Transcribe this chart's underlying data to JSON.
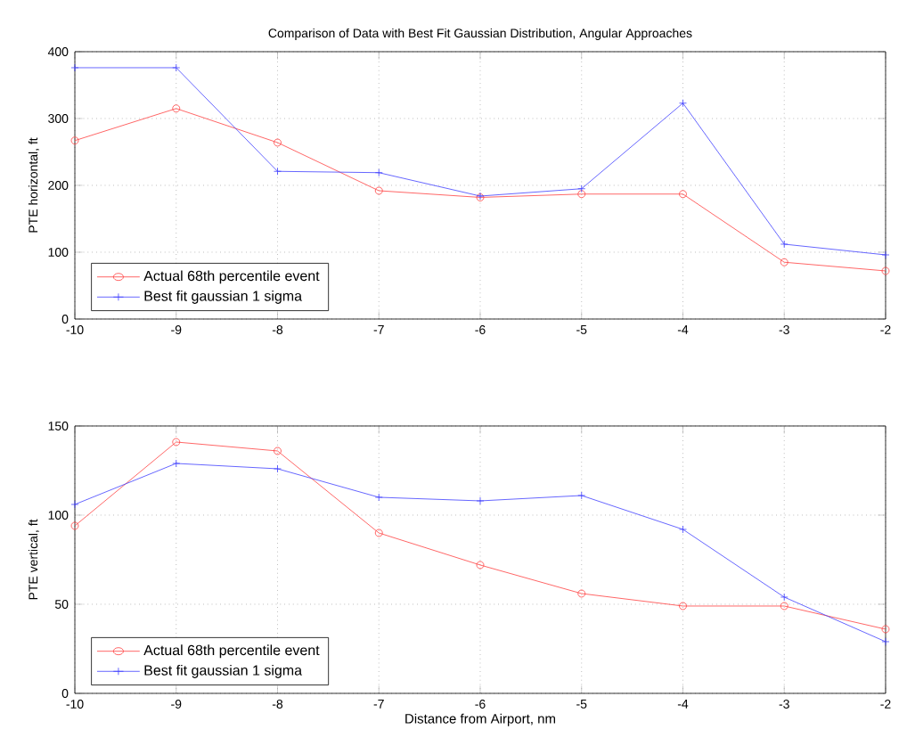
{
  "chart_data": [
    {
      "type": "line",
      "title": "Comparison of Data with Best Fit Gaussian Distribution, Angular Approaches",
      "ylabel": "PTE horizontal, ft",
      "x": [
        -10,
        -9,
        -8,
        -7,
        -6,
        -5,
        -4,
        -3,
        -2
      ],
      "series": [
        {
          "name": "Actual 68th percentile event",
          "color": "#ff4040",
          "marker": "circle",
          "values": [
            267,
            315,
            264,
            192,
            182,
            187,
            187,
            85,
            72
          ]
        },
        {
          "name": "Best fit gaussian 1 sigma",
          "color": "#4040ff",
          "marker": "cross",
          "values": [
            376,
            376,
            221,
            219,
            184,
            195,
            323,
            112,
            96
          ]
        }
      ],
      "xlim": [
        -10,
        -2
      ],
      "ylim": [
        0,
        400
      ],
      "xticks": [
        -10,
        -9,
        -8,
        -7,
        -6,
        -5,
        -4,
        -3,
        -2
      ],
      "yticks": [
        0,
        100,
        200,
        300,
        400
      ],
      "grid": true,
      "legend": "bottom left",
      "line_style": "solid"
    },
    {
      "type": "line",
      "xlabel": "Distance from Airport, nm",
      "ylabel": "PTE vertical, ft",
      "x": [
        -10,
        -9,
        -8,
        -7,
        -6,
        -5,
        -4,
        -3,
        -2
      ],
      "series": [
        {
          "name": "Actual 68th percentile event",
          "color": "#ff4040",
          "marker": "circle",
          "values": [
            94,
            141,
            136,
            90,
            72,
            56,
            49,
            49,
            36
          ]
        },
        {
          "name": "Best fit gaussian 1 sigma",
          "color": "#4040ff",
          "marker": "cross",
          "values": [
            106,
            129,
            126,
            110,
            108,
            111,
            92,
            54,
            29
          ]
        }
      ],
      "xlim": [
        -10,
        -2
      ],
      "ylim": [
        0,
        150
      ],
      "xticks": [
        -10,
        -9,
        -8,
        -7,
        -6,
        -5,
        -4,
        -3,
        -2
      ],
      "yticks": [
        0,
        50,
        100,
        150
      ],
      "grid": true,
      "legend": "bottom left",
      "line_style": "solid"
    }
  ]
}
